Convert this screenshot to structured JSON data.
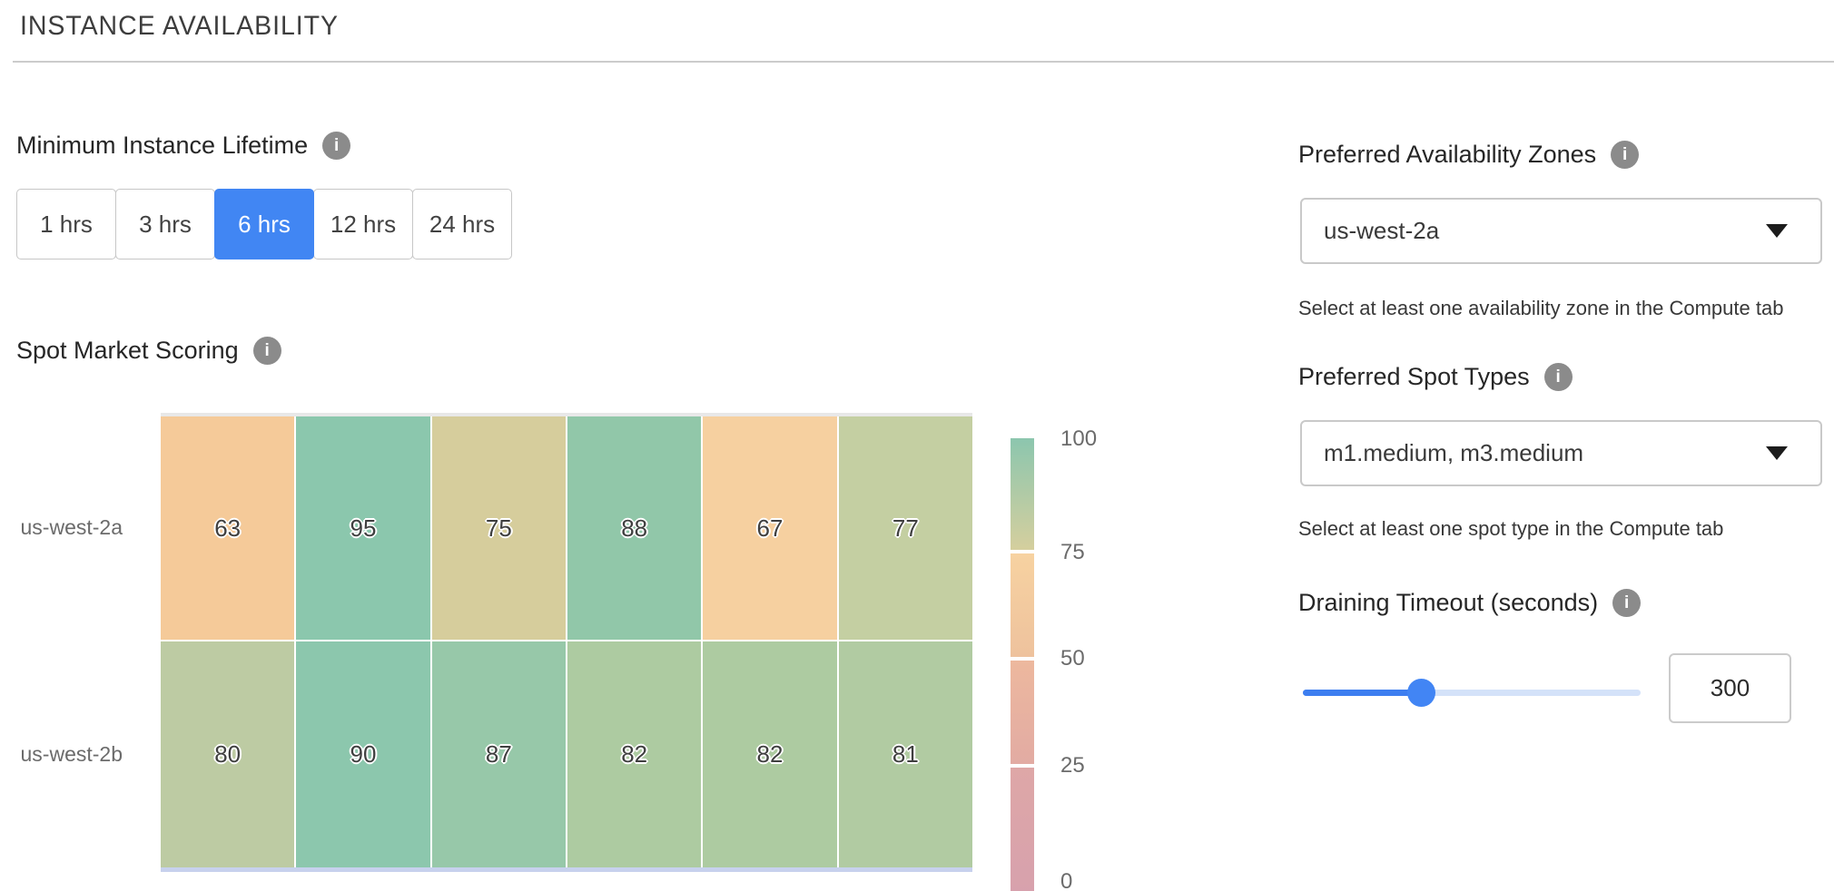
{
  "header": {
    "title": "INSTANCE AVAILABILITY"
  },
  "min_lifetime": {
    "label": "Minimum Instance Lifetime",
    "selected_index": 2,
    "selected_label": "6 hrs",
    "options": [
      {
        "label": "1 hrs"
      },
      {
        "label": "3 hrs"
      },
      {
        "label": "6 hrs"
      },
      {
        "label": "12 hrs"
      },
      {
        "label": "24 hrs"
      }
    ]
  },
  "chart_data": {
    "type": "heatmap",
    "title": "Spot Market Scoring",
    "rows": [
      "us-west-2a",
      "us-west-2b"
    ],
    "columns": [
      "",
      "",
      "",
      "",
      "",
      ""
    ],
    "values": [
      [
        63,
        95,
        75,
        88,
        67,
        77
      ],
      [
        80,
        90,
        87,
        82,
        82,
        81
      ]
    ],
    "value_range": [
      0,
      100
    ],
    "cell_colors": [
      [
        "#f5ca99",
        "#8bc7ad",
        "#d6cd9c",
        "#91c7a9",
        "#f6d0a0",
        "#c4cfa2"
      ],
      [
        "#bdcba3",
        "#8cc7ad",
        "#97c8a9",
        "#adcba1",
        "#adcba1",
        "#b1cba2"
      ]
    ],
    "colorbar": {
      "ticks": [
        "100",
        "75",
        "50",
        "25",
        "0"
      ],
      "segments": [
        {
          "from": "#8cc6ae",
          "to": "#d5cf9e"
        },
        {
          "from": "#f7d2a1",
          "to": "#eec29d"
        },
        {
          "from": "#edb89e",
          "to": "#e2aba3"
        },
        {
          "from": "#dea7a7",
          "to": "#d7a1ad"
        }
      ]
    },
    "legend_position": "right",
    "grid": false
  },
  "availability_zones": {
    "label": "Preferred Availability Zones",
    "value": "us-west-2a",
    "helper": "Select at least one availability zone in the Compute tab"
  },
  "spot_types": {
    "label": "Preferred Spot Types",
    "value": "m1.medium, m3.medium",
    "helper": "Select at least one spot type in the Compute tab"
  },
  "draining_timeout": {
    "label": "Draining Timeout (seconds)",
    "value": "300",
    "slider_percent": 35
  },
  "colors": {
    "accent_blue": "#4186f3",
    "slider_fill": "#3d7ef0",
    "slider_track": "#d4e2f9",
    "info_icon_gray": "#8b8b8b",
    "axis_line": "#c7d1ed",
    "divider": "#cccccc"
  }
}
